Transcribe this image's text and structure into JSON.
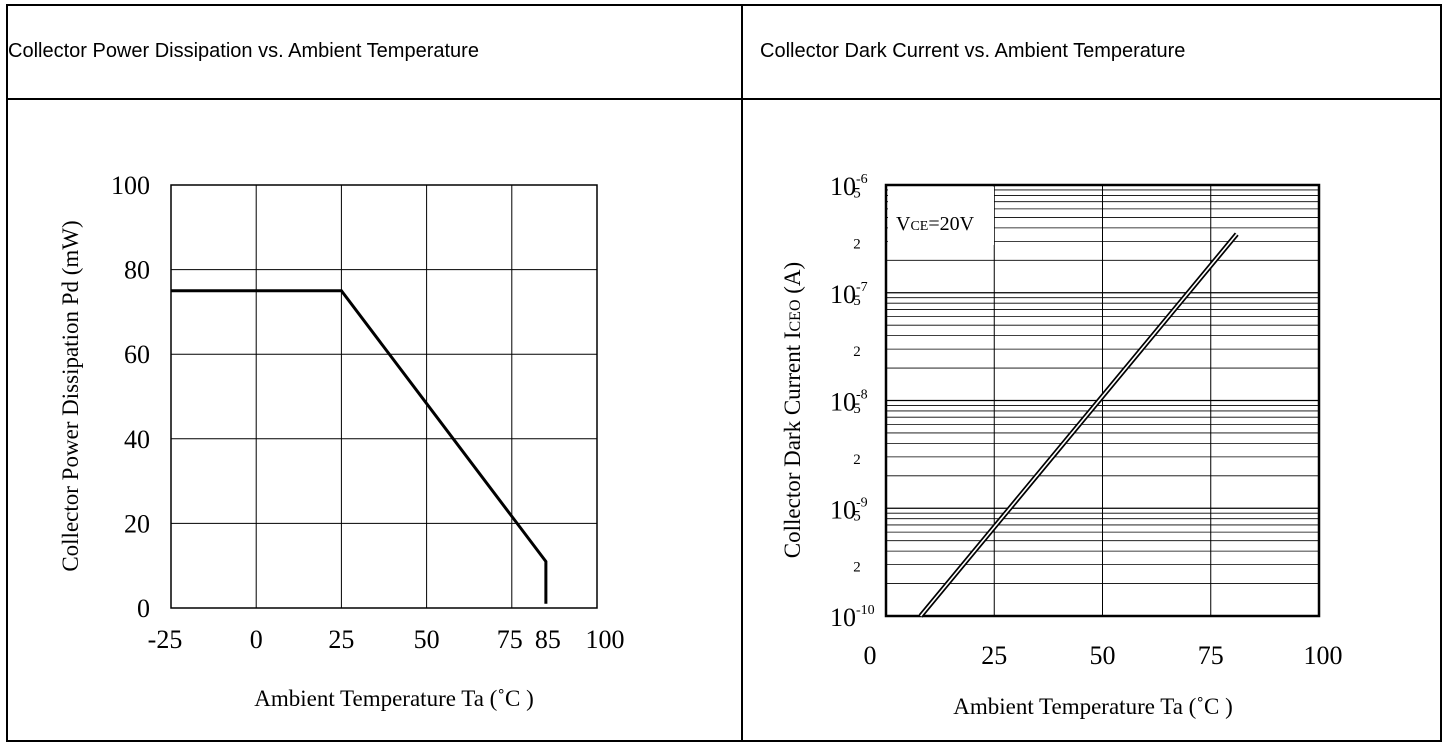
{
  "panels": {
    "left_title": "Collector Power Dissipation vs. Ambient Temperature",
    "right_title": "Collector Dark Current vs. Ambient Temperature"
  },
  "chart_data": [
    {
      "type": "line",
      "title": "Collector Power Dissipation vs. Ambient Temperature",
      "xlabel": "Ambient Temperature Ta (˚C   )",
      "ylabel": "Collector Power Dissipation Pd (mW)",
      "xlim": [
        -25,
        100
      ],
      "ylim": [
        0,
        100
      ],
      "x_ticks": [
        -25,
        0,
        25,
        50,
        75,
        85,
        100
      ],
      "y_ticks": [
        0,
        20,
        40,
        60,
        80,
        100
      ],
      "grid": true,
      "series": [
        {
          "x": [
            -25,
            25,
            85,
            85
          ],
          "y": [
            75,
            75,
            11,
            1
          ]
        }
      ]
    },
    {
      "type": "line",
      "title": "Collector Dark Current vs. Ambient Temperature",
      "xlabel": "Ambient Temperature Ta (˚C )",
      "ylabel_main": "Collector Dark Current I",
      "ylabel_sub": "CEO",
      "ylabel_tail": " (A)",
      "y_scale": "log",
      "xlim": [
        0,
        100
      ],
      "ylim": [
        1e-10,
        1e-06
      ],
      "x_ticks": [
        0,
        25,
        50,
        75,
        100
      ],
      "y_decades": [
        -6,
        -7,
        -8,
        -9,
        -10
      ],
      "y_minor_labels": [
        "5",
        "2"
      ],
      "grid": true,
      "annotation": {
        "main": "V",
        "sub": "CE",
        "tail": "=20V"
      },
      "series": [
        {
          "x": [
            8,
            81
          ],
          "y": [
            1e-10,
            3.5e-07
          ]
        }
      ]
    }
  ]
}
